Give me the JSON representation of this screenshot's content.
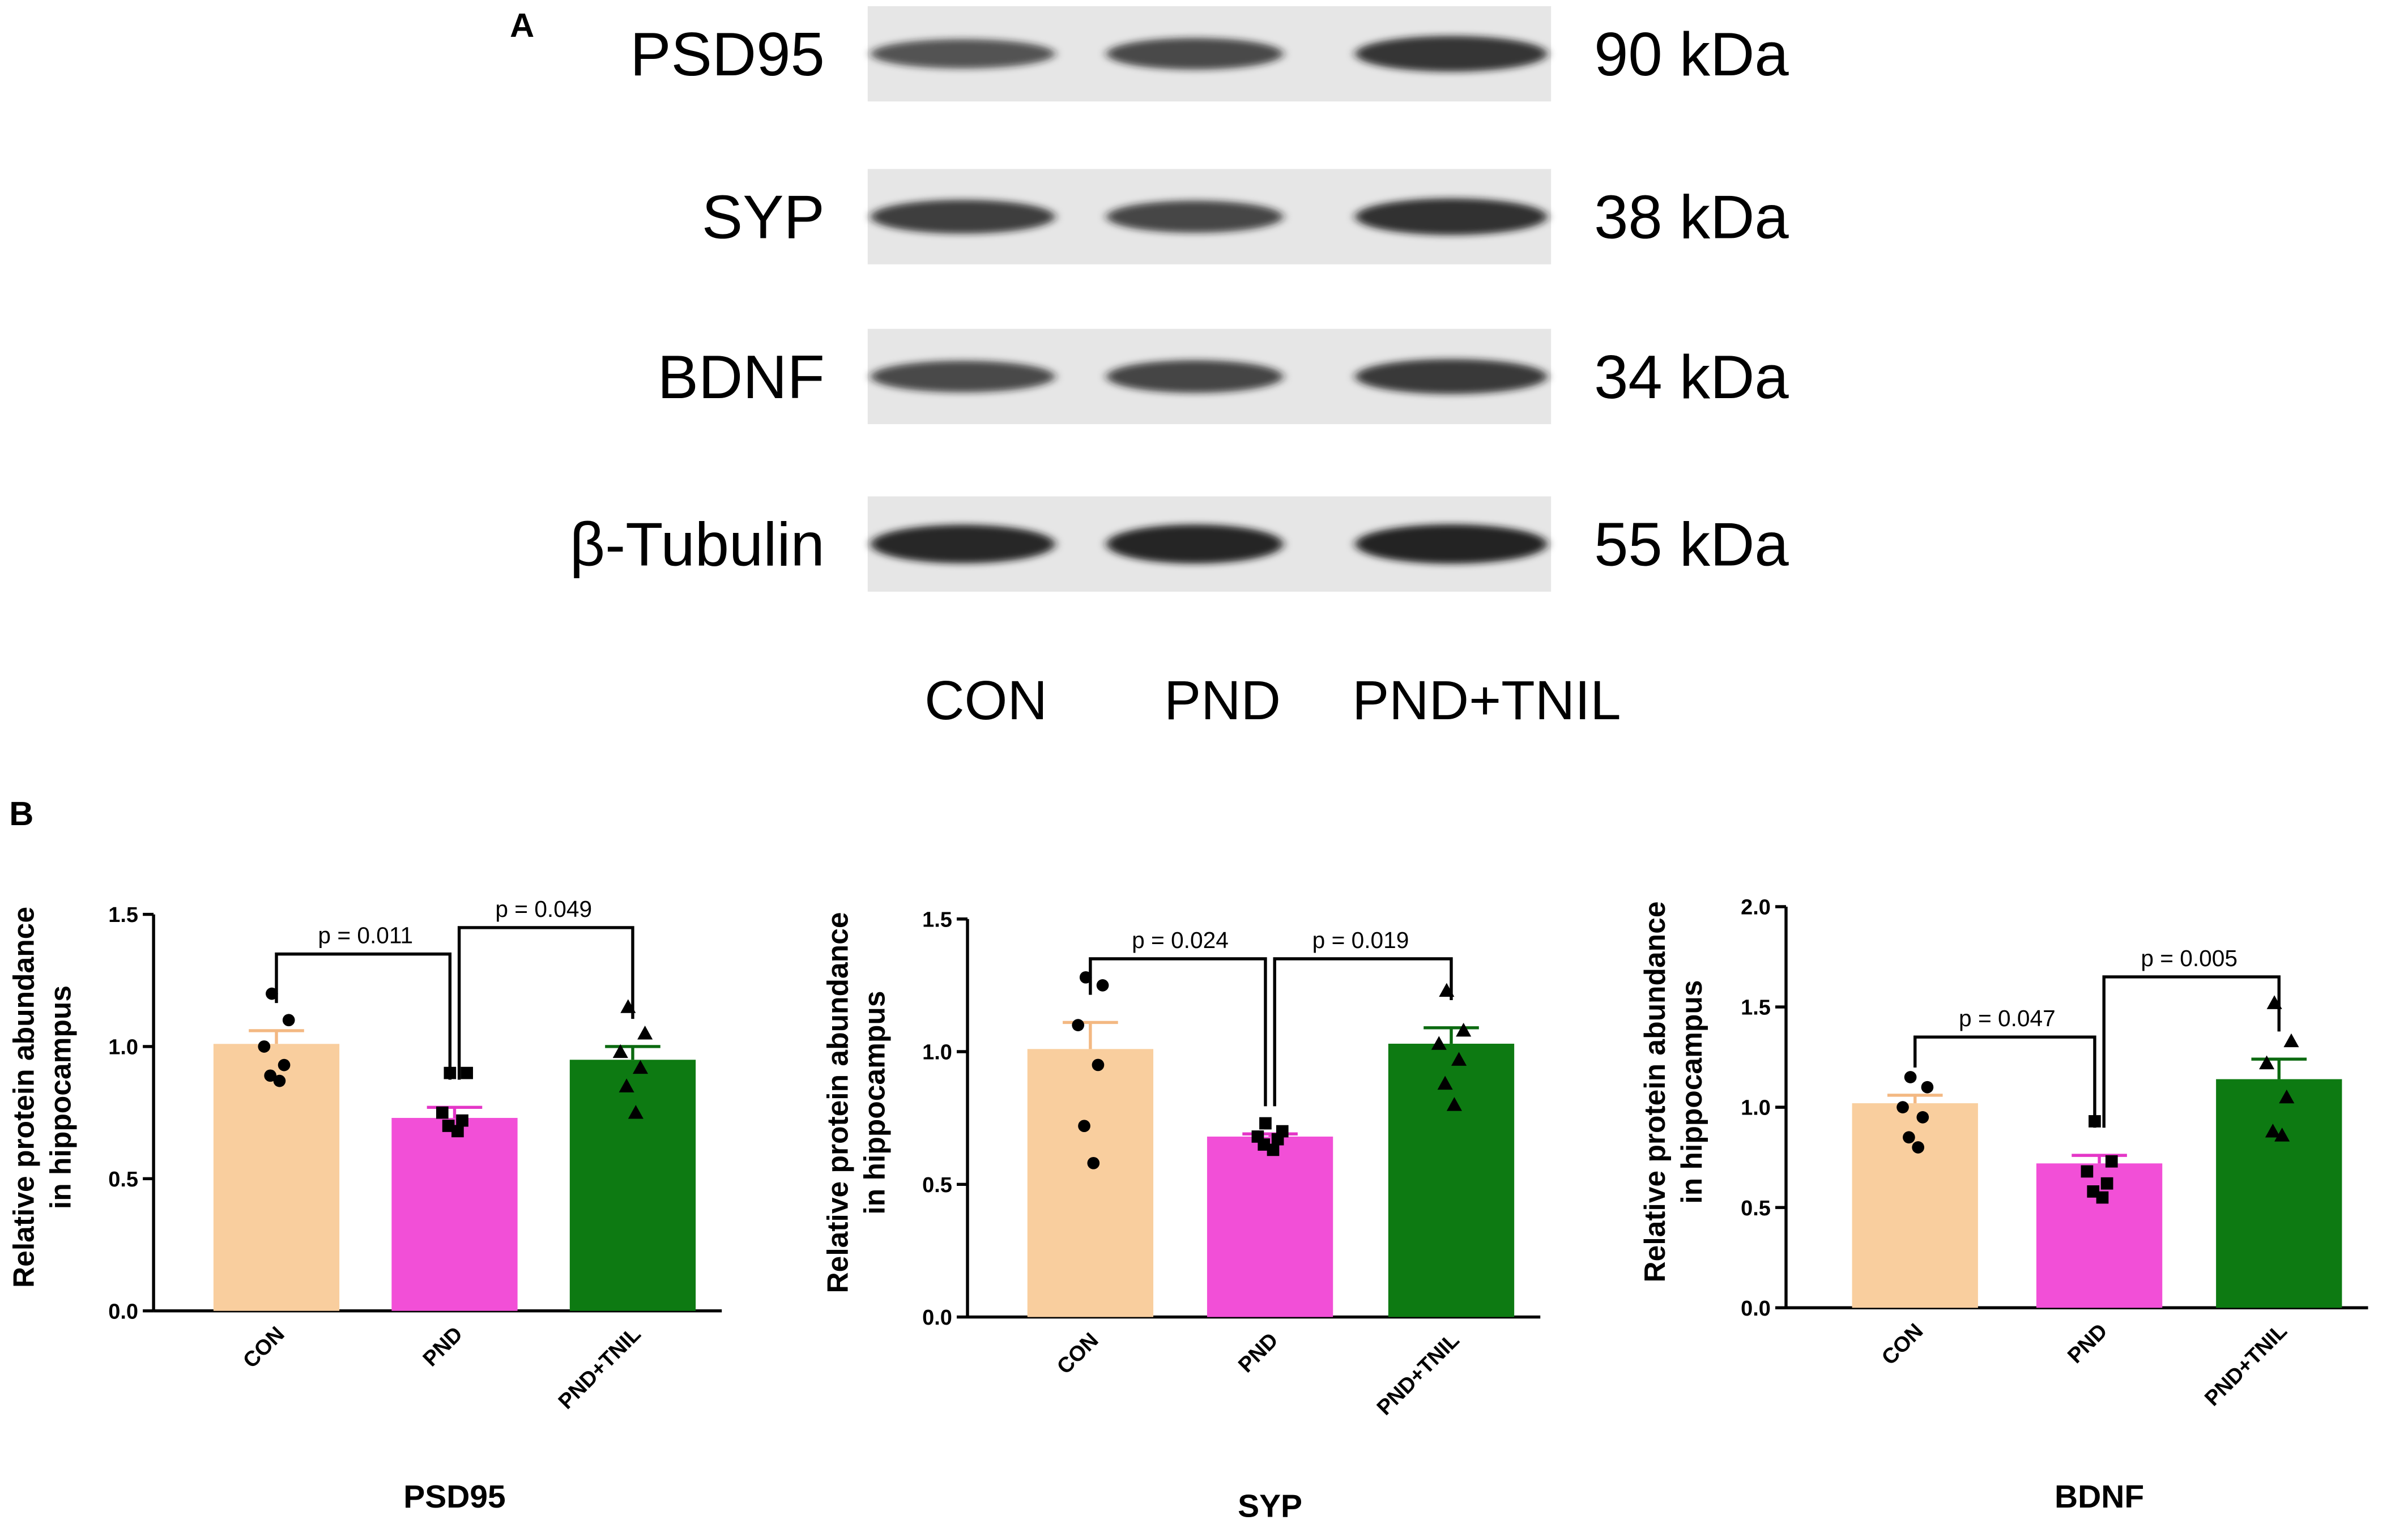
{
  "panel_a": {
    "letter": "A",
    "lanes": [
      "CON",
      "PND",
      "PND+TNIL"
    ],
    "blots": [
      {
        "protein": "PSD95",
        "size": "90 kDa",
        "intensity": [
          0.62,
          0.7,
          0.85
        ]
      },
      {
        "protein": "SYP",
        "size": "38 kDa",
        "intensity": [
          0.78,
          0.72,
          0.88
        ]
      },
      {
        "protein": "BDNF",
        "size": "34 kDa",
        "intensity": [
          0.7,
          0.74,
          0.82
        ]
      },
      {
        "protein": "β-Tubulin",
        "size": "55 kDa",
        "intensity": [
          0.95,
          0.97,
          0.98
        ]
      }
    ]
  },
  "panel_b": {
    "letter": "B",
    "ylabel_line1": "Relative protein abundance",
    "ylabel_line2": "in hippocampus"
  },
  "colors": {
    "CON": "#F9CE9E",
    "CON_err": "#F3B882",
    "PND": "#F24FD7",
    "PND_err": "#E436C7",
    "PND+TNIL": "#0D7A12",
    "PND+TNIL_err": "#0B6A10",
    "band": "#1a1a1a",
    "blot_bg": "#e6e6e6"
  },
  "chart_data": [
    {
      "type": "bar",
      "title": "PSD95",
      "ylabel": "Relative protein abundance in hippocampus",
      "categories": [
        "CON",
        "PND",
        "PND+TNIL"
      ],
      "values": [
        1.01,
        0.73,
        0.95
      ],
      "sem": [
        0.05,
        0.04,
        0.05
      ],
      "ylim": [
        0,
        1.5
      ],
      "yticks": [
        "0.0",
        "0.5",
        "1.0",
        "1.5"
      ],
      "yticks_values": [
        0,
        0.5,
        1.0,
        1.5
      ],
      "points": [
        [
          1.2,
          1.1,
          1.0,
          0.93,
          0.89,
          0.87
        ],
        [
          0.9,
          0.9,
          0.75,
          0.72,
          0.7,
          0.68
        ],
        [
          1.15,
          1.05,
          0.98,
          0.92,
          0.85,
          0.75
        ]
      ],
      "markers": [
        "circle",
        "square",
        "triangle"
      ],
      "comparisons": [
        {
          "from": 0,
          "to": 1,
          "label": "p = 0.011",
          "y": 1.35
        },
        {
          "from": 1,
          "to": 2,
          "label": "p = 0.049",
          "y": 1.45
        }
      ]
    },
    {
      "type": "bar",
      "title": "SYP",
      "ylabel": "Relative protein abundance in hippocampus",
      "categories": [
        "CON",
        "PND",
        "PND+TNIL"
      ],
      "values": [
        1.01,
        0.68,
        1.03
      ],
      "sem": [
        0.1,
        0.01,
        0.06
      ],
      "ylim": [
        0,
        1.5
      ],
      "yticks": [
        "0.0",
        "0.5",
        "1.0",
        "1.5"
      ],
      "yticks_values": [
        0,
        0.5,
        1.0,
        1.5
      ],
      "points": [
        [
          1.28,
          1.25,
          1.1,
          0.95,
          0.72,
          0.58
        ],
        [
          0.73,
          0.7,
          0.68,
          0.67,
          0.65,
          0.63
        ],
        [
          1.23,
          1.08,
          1.03,
          0.97,
          0.88,
          0.8
        ]
      ],
      "markers": [
        "circle",
        "square",
        "triangle"
      ],
      "comparisons": [
        {
          "from": 0,
          "to": 1,
          "label": "p = 0.024",
          "y": 1.35
        },
        {
          "from": 1,
          "to": 2,
          "label": "p = 0.019",
          "y": 1.35
        }
      ]
    },
    {
      "type": "bar",
      "title": "BDNF",
      "ylabel": "Relative protein abundance in hippocampus",
      "categories": [
        "CON",
        "PND",
        "PND+TNIL"
      ],
      "values": [
        1.02,
        0.72,
        1.14
      ],
      "sem": [
        0.04,
        0.04,
        0.1
      ],
      "ylim": [
        0,
        2.0
      ],
      "yticks": [
        "0.0",
        "0.5",
        "1.0",
        "1.5",
        "2.0"
      ],
      "yticks_values": [
        0,
        0.5,
        1.0,
        1.5,
        2.0
      ],
      "points": [
        [
          1.15,
          1.1,
          1.0,
          0.95,
          0.85,
          0.8
        ],
        [
          0.93,
          0.73,
          0.68,
          0.62,
          0.58,
          0.55
        ],
        [
          1.52,
          1.33,
          1.22,
          1.05,
          0.88,
          0.86
        ]
      ],
      "markers": [
        "circle",
        "square",
        "triangle"
      ],
      "comparisons": [
        {
          "from": 0,
          "to": 1,
          "label": "p = 0.047",
          "y": 1.35
        },
        {
          "from": 1,
          "to": 2,
          "label": "p = 0.005",
          "y": 1.65
        }
      ]
    }
  ]
}
